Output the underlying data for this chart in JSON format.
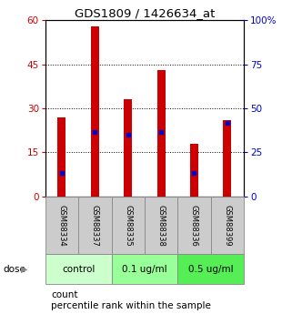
{
  "title": "GDS1809 / 1426634_at",
  "samples": [
    "GSM88334",
    "GSM88337",
    "GSM88335",
    "GSM88338",
    "GSM88336",
    "GSM88399"
  ],
  "bar_heights": [
    27,
    58,
    33,
    43,
    18,
    26
  ],
  "blue_dot_left": [
    8,
    22,
    21,
    22,
    8,
    25
  ],
  "ylim_left": [
    0,
    60
  ],
  "ylim_right": [
    0,
    100
  ],
  "yticks_left": [
    0,
    15,
    30,
    45,
    60
  ],
  "yticks_right": [
    0,
    25,
    50,
    75,
    100
  ],
  "bar_color": "#cc0000",
  "blue_dot_color": "#0000cc",
  "left_tick_color": "#cc0000",
  "right_tick_color": "#0000cc",
  "dose_groups": [
    {
      "label": "control",
      "samples": [
        0,
        1
      ],
      "bg_color": "#ccffcc"
    },
    {
      "label": "0.1 ug/ml",
      "samples": [
        2,
        3
      ],
      "bg_color": "#99ff99"
    },
    {
      "label": "0.5 ug/ml",
      "samples": [
        4,
        5
      ],
      "bg_color": "#55ee55"
    }
  ],
  "bar_width": 0.25,
  "sample_bg_color": "#cccccc",
  "legend_count_label": "count",
  "legend_pct_label": "percentile rank within the sample"
}
